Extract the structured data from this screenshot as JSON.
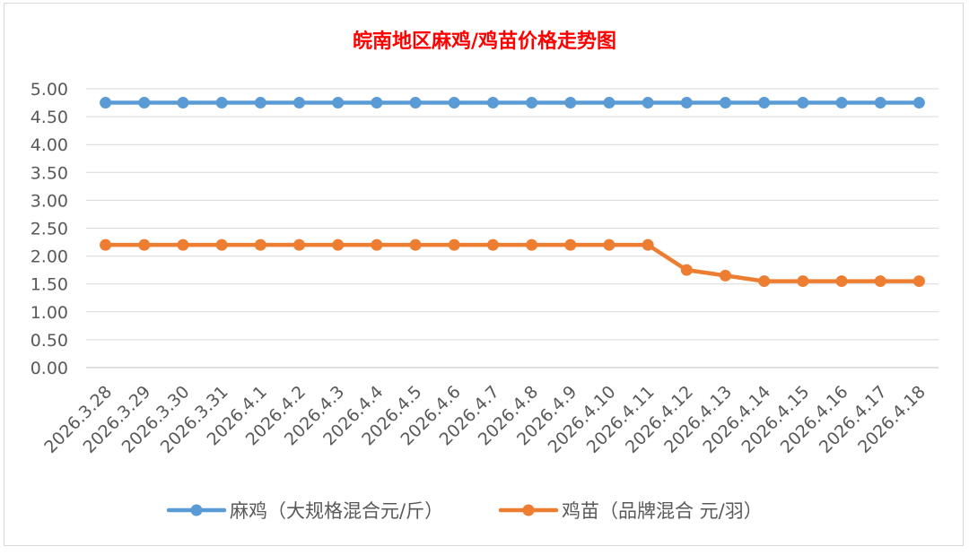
{
  "chart_data": {
    "type": "line",
    "title": "皖南地区麻鸡/鸡苗价格走势图",
    "categories": [
      "2026.3.28",
      "2026.3.29",
      "2026.3.30",
      "2026.3.31",
      "2026.4.1",
      "2026.4.2",
      "2026.4.3",
      "2026.4.4",
      "2026.4.5",
      "2026.4.6",
      "2026.4.7",
      "2026.4.8",
      "2026.4.9",
      "2026.4.10",
      "2026.4.11",
      "2026.4.12",
      "2026.4.13",
      "2026.4.14",
      "2026.4.15",
      "2026.4.16",
      "2026.4.17",
      "2026.4.18"
    ],
    "series": [
      {
        "name": "麻鸡（大规格混合元/斤）",
        "color": "#5b9bd5",
        "values": [
          4.75,
          4.75,
          4.75,
          4.75,
          4.75,
          4.75,
          4.75,
          4.75,
          4.75,
          4.75,
          4.75,
          4.75,
          4.75,
          4.75,
          4.75,
          4.75,
          4.75,
          4.75,
          4.75,
          4.75,
          4.75,
          4.75
        ]
      },
      {
        "name": "鸡苗（品牌混合 元/羽）",
        "color": "#ed7d31",
        "values": [
          2.2,
          2.2,
          2.2,
          2.2,
          2.2,
          2.2,
          2.2,
          2.2,
          2.2,
          2.2,
          2.2,
          2.2,
          2.2,
          2.2,
          2.2,
          1.75,
          1.65,
          1.55,
          1.55,
          1.55,
          1.55,
          1.55
        ]
      }
    ],
    "ylim": [
      0,
      5
    ],
    "yticks": [
      "0.00",
      "0.50",
      "1.00",
      "1.50",
      "2.00",
      "2.50",
      "3.00",
      "3.50",
      "4.00",
      "4.50",
      "5.00"
    ],
    "xlabel": "",
    "ylabel": "",
    "grid": true,
    "legend": "bottom",
    "title_color": "#ff0000",
    "axis_text_color": "#595959",
    "grid_color": "#d9d9d9"
  }
}
